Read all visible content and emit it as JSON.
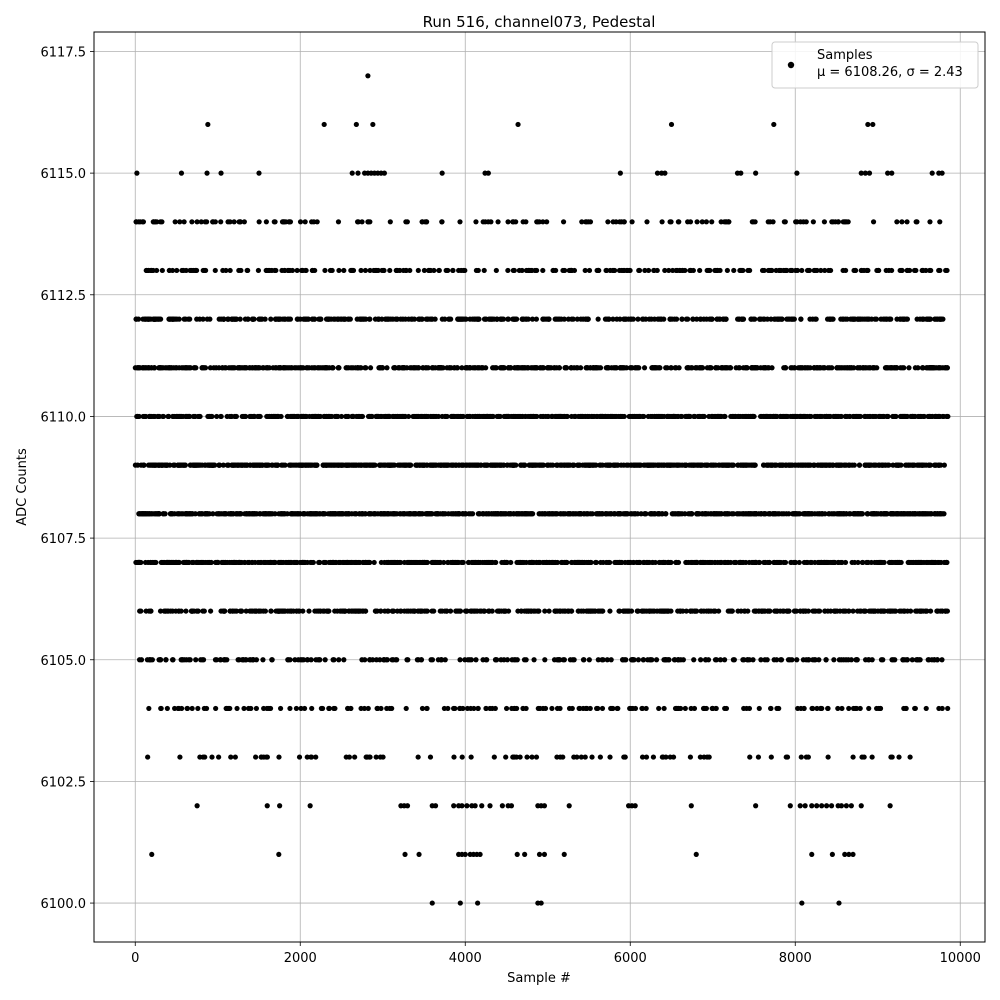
{
  "chart_data": {
    "type": "scatter",
    "title": "Run 516, channel073, Pedestal",
    "xlabel": "Sample #",
    "ylabel": "ADC Counts",
    "xlim": [
      -500,
      10300
    ],
    "ylim": [
      6099.2,
      6117.9
    ],
    "xticks": [
      0,
      2000,
      4000,
      6000,
      8000,
      10000
    ],
    "yticks": [
      6100.0,
      6102.5,
      6105.0,
      6107.5,
      6110.0,
      6112.5,
      6115.0,
      6117.5
    ],
    "grid": true,
    "legend_position": "top-right",
    "series": [
      {
        "name": "Samples",
        "color": "#000000",
        "marker": "circle",
        "stats_label": "μ = 6108.26, σ = 2.43",
        "x_range": [
          0,
          9850
        ],
        "levels": [
          {
            "y": 6100,
            "x": [
              3600,
              3940,
              4150,
              4880,
              4920,
              8080,
              8530
            ]
          },
          {
            "y": 6101,
            "x": [
              200,
              1740,
              3270,
              3440,
              3920,
              3960,
              4000,
              4060,
              4100,
              4140,
              4180,
              4630,
              4720,
              4900,
              4960,
              5200,
              6800,
              8200,
              8450,
              8600,
              8650,
              8700
            ]
          },
          {
            "y": 6102,
            "x": [
              750,
              1600,
              1750,
              2120,
              3220,
              3260,
              3300,
              3600,
              3640,
              3860,
              3920,
              3960,
              4020,
              4080,
              4120,
              4200,
              4300,
              4450,
              4520,
              4560,
              4880,
              4920,
              4960,
              5260,
              5980,
              6020,
              6060,
              6740,
              7520,
              7940,
              8060,
              8120,
              8200,
              8260,
              8320,
              8380,
              8440,
              8520,
              8560,
              8620,
              8680,
              8800,
              9150
            ]
          },
          {
            "y": 6103,
            "x_start": 100,
            "x_end": 9850,
            "count": 90
          },
          {
            "y": 6104,
            "x_start": 150,
            "x_end": 9850,
            "count": 180
          },
          {
            "y": 6105,
            "x_start": 50,
            "x_end": 9800,
            "count": 250
          },
          {
            "y": 6106,
            "x_start": 50,
            "x_end": 9850,
            "count": 460
          },
          {
            "y": 6107,
            "x_start": 0,
            "x_end": 9850,
            "count": 640
          },
          {
            "y": 6108,
            "x_start": 0,
            "x_end": 9850,
            "count": 760
          },
          {
            "y": 6109,
            "x_start": 0,
            "x_end": 9850,
            "count": 760
          },
          {
            "y": 6110,
            "x_start": 0,
            "x_end": 9850,
            "count": 700
          },
          {
            "y": 6111,
            "x_start": 0,
            "x_end": 9850,
            "count": 560
          },
          {
            "y": 6112,
            "x_start": 0,
            "x_end": 9850,
            "count": 430
          },
          {
            "y": 6113,
            "x_start": 0,
            "x_end": 9850,
            "count": 260
          },
          {
            "y": 6114,
            "x_start": 0,
            "x_end": 9800,
            "count": 150
          },
          {
            "y": 6115,
            "x": [
              20,
              560,
              870,
              1040,
              1500,
              2630,
              2700,
              2780,
              2820,
              2860,
              2900,
              2940,
              2980,
              3020,
              3720,
              4240,
              4280,
              5880,
              6330,
              6380,
              6420,
              7300,
              7340,
              7520,
              8020,
              8800,
              8850,
              8900,
              9120,
              9170,
              9660,
              9740,
              9780
            ]
          },
          {
            "y": 6116,
            "x": [
              880,
              2290,
              2680,
              2880,
              4640,
              6500,
              7740,
              8880,
              8940
            ]
          },
          {
            "y": 6117,
            "x": [
              2820
            ]
          }
        ]
      }
    ]
  }
}
